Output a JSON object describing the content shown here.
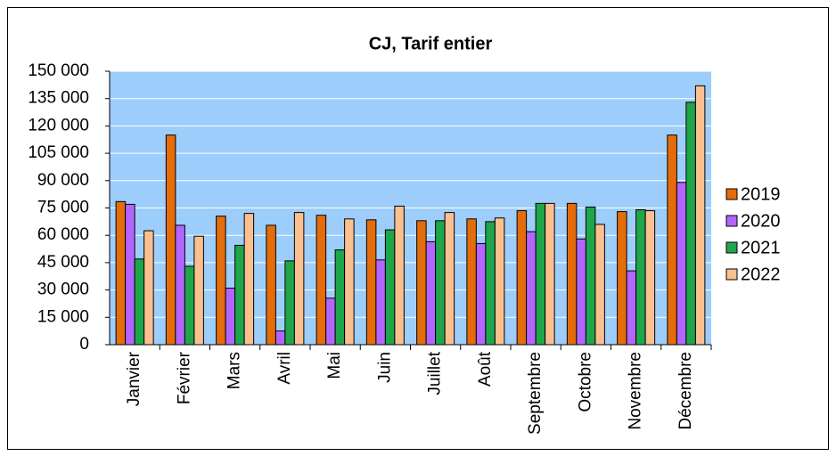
{
  "chart_data": {
    "type": "bar",
    "title": "CJ, Tarif entier",
    "categories": [
      "Janvier",
      "Février",
      "Mars",
      "Avril",
      "Mai",
      "Juin",
      "Juillet",
      "Août",
      "Septembre",
      "Octobre",
      "Novembre",
      "Décembre"
    ],
    "series": [
      {
        "name": "2019",
        "color": "#e46c0a",
        "values": [
          78500,
          115000,
          70500,
          65500,
          71000,
          68500,
          68000,
          69000,
          73500,
          77500,
          73000,
          115000
        ]
      },
      {
        "name": "2020",
        "color": "#b366ff",
        "values": [
          77000,
          65500,
          31000,
          7500,
          25500,
          46500,
          56500,
          55500,
          62000,
          58000,
          40500,
          89000
        ]
      },
      {
        "name": "2021",
        "color": "#1fa64a",
        "values": [
          47000,
          43000,
          54500,
          46000,
          52000,
          63000,
          68000,
          67500,
          77500,
          75500,
          74000,
          133000
        ]
      },
      {
        "name": "2022",
        "color": "#fac090",
        "values": [
          62500,
          59500,
          72000,
          72500,
          69000,
          76000,
          72500,
          69500,
          77500,
          66000,
          73500,
          142000
        ]
      }
    ],
    "ylim": [
      0,
      150000
    ],
    "yticks": [
      0,
      {
        "value": 15000,
        "label": "15 000"
      },
      {
        "value": 30000,
        "label": "30 000"
      },
      {
        "value": 45000,
        "label": "45 000"
      },
      {
        "value": 60000,
        "label": "60 000"
      },
      {
        "value": 75000,
        "label": "75 000"
      },
      {
        "value": 90000,
        "label": "90 000"
      },
      {
        "value": 105000,
        "label": "105 000"
      },
      {
        "value": 120000,
        "label": "120 000"
      },
      {
        "value": 135000,
        "label": "135 000"
      },
      {
        "value": 150000,
        "label": "150 000"
      }
    ],
    "grid": true,
    "legend": "right",
    "background": "#9dcdfb"
  }
}
